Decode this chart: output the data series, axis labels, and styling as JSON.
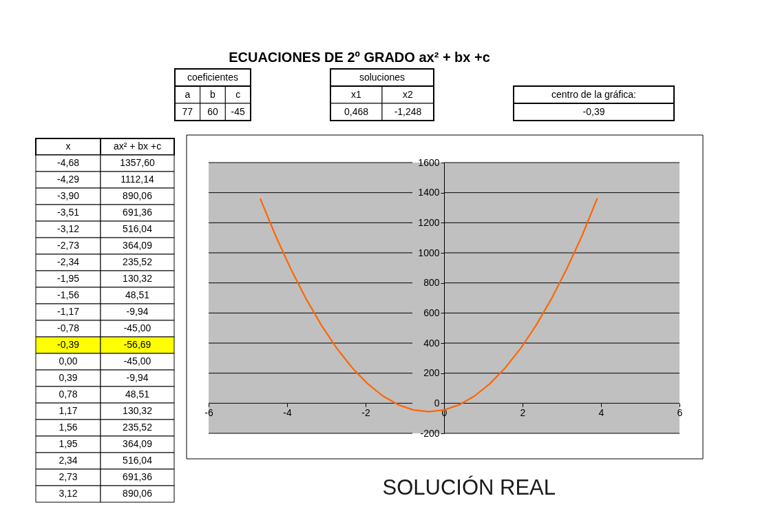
{
  "chart_data": [
    {
      "type": "other",
      "title": "ECUACIONES DE 2º GRADO  ax² + bx +c"
    },
    {
      "type": "other",
      "title": "coeficientes",
      "categories": [
        "a",
        "b",
        "c"
      ],
      "values": [
        77,
        60,
        -45
      ],
      "data_labels": true
    },
    {
      "type": "other",
      "title": "soluciones",
      "categories": [
        "x1",
        "x2"
      ],
      "values": [
        0.468,
        -1.248
      ],
      "value_labels": [
        "0,468",
        "-1,248"
      ]
    },
    {
      "type": "other",
      "title": "centro de la gráfica:",
      "values": [
        -0.39
      ],
      "value_labels": [
        "-0,39"
      ]
    },
    {
      "type": "heatmap",
      "ylabel": "x",
      "categories": [
        "ax² + bx +c"
      ],
      "y_categories": [
        "-4,68",
        "-4,29",
        "-3,90",
        "-3,51",
        "-3,12",
        "-2,73",
        "-2,34",
        "-1,95",
        "-1,56",
        "-1,17",
        "-0,78",
        "-0,39",
        "0,00",
        "0,39",
        "0,78",
        "1,17",
        "1,56",
        "1,95",
        "2,34",
        "2,73",
        "3,12"
      ],
      "cells": [
        [
          1357.6
        ],
        [
          1112.14
        ],
        [
          890.06
        ],
        [
          691.36
        ],
        [
          516.04
        ],
        [
          364.09
        ],
        [
          235.52
        ],
        [
          130.32
        ],
        [
          48.51
        ],
        [
          -9.94
        ],
        [
          -45
        ],
        [
          -56.69
        ],
        [
          -45
        ],
        [
          -9.94
        ],
        [
          48.51
        ],
        [
          130.32
        ],
        [
          235.52
        ],
        [
          364.09
        ],
        [
          516.04
        ],
        [
          691.36
        ],
        [
          890.06
        ]
      ],
      "cell_labels": [
        [
          "1357,60"
        ],
        [
          "1112,14"
        ],
        [
          "890,06"
        ],
        [
          "691,36"
        ],
        [
          "516,04"
        ],
        [
          "364,09"
        ],
        [
          "235,52"
        ],
        [
          "130,32"
        ],
        [
          "48,51"
        ],
        [
          "-9,94"
        ],
        [
          "-45,00"
        ],
        [
          "-56,69"
        ],
        [
          "-45,00"
        ],
        [
          "-9,94"
        ],
        [
          "48,51"
        ],
        [
          "130,32"
        ],
        [
          "235,52"
        ],
        [
          "364,09"
        ],
        [
          "516,04"
        ],
        [
          "691,36"
        ],
        [
          "890,06"
        ]
      ],
      "colors": [
        "#ffffff",
        "#ffffff",
        "#ffffff",
        "#ffffff",
        "#ffffff",
        "#ffffff",
        "#ffffff",
        "#ffffff",
        "#ffffff",
        "#ffffff",
        "#ffffff",
        "#ffff00",
        "#ffffff",
        "#ffffff",
        "#ffffff",
        "#ffffff",
        "#ffffff",
        "#ffffff",
        "#ffffff",
        "#ffffff",
        "#ffffff"
      ]
    },
    {
      "type": "line",
      "x": [
        -4.68,
        -4.29,
        -3.9,
        -3.51,
        -3.12,
        -2.73,
        -2.34,
        -1.95,
        -1.56,
        -1.17,
        -0.78,
        -0.39,
        0,
        0.39,
        0.78,
        1.17,
        1.56,
        1.95,
        2.34,
        2.73,
        3.12,
        3.51,
        3.9
      ],
      "values": [
        1357.6,
        1112.14,
        890.06,
        691.36,
        516.04,
        364.09,
        235.52,
        130.32,
        48.51,
        -9.94,
        -45,
        -56.69,
        -45,
        -9.94,
        48.51,
        130.32,
        235.52,
        364.09,
        516.04,
        691.36,
        890.06,
        1110,
        1360
      ],
      "color": "#ff6600",
      "xlim": [
        -6,
        6
      ],
      "ylim": [
        -200,
        1600
      ],
      "xticks": [
        -6,
        -4,
        -2,
        0,
        2,
        4,
        6
      ],
      "yticks": [
        -200,
        0,
        200,
        400,
        600,
        800,
        1000,
        1200,
        1400,
        1600
      ],
      "grid": "y",
      "marker": "none",
      "line_style": "solid",
      "annotations": [
        "SOLUCIÓN REAL"
      ]
    }
  ]
}
